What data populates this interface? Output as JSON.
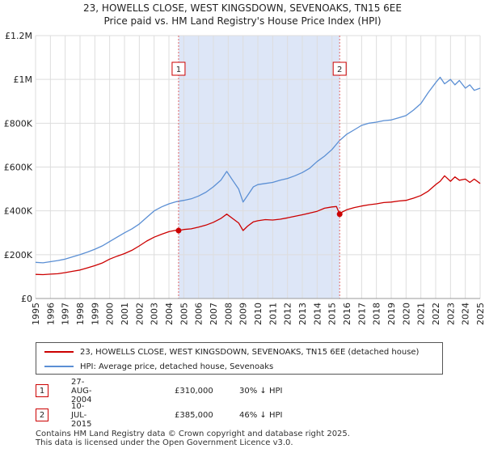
{
  "chart_data": {
    "type": "line",
    "title": "23, HOWELLS CLOSE, WEST KINGSDOWN, SEVENOAKS, TN15 6EE",
    "subtitle": "Price paid vs. HM Land Registry's House Price Index (HPI)",
    "xlabel": "",
    "ylabel": "",
    "xlim": [
      1995,
      2025
    ],
    "ylim": [
      0,
      1200000
    ],
    "grid": true,
    "x_ticks": [
      1995,
      1996,
      1997,
      1998,
      1999,
      2000,
      2001,
      2002,
      2003,
      2004,
      2005,
      2006,
      2007,
      2008,
      2009,
      2010,
      2011,
      2012,
      2013,
      2014,
      2015,
      2016,
      2017,
      2018,
      2019,
      2020,
      2021,
      2022,
      2023,
      2024,
      2025
    ],
    "y_ticks": [
      {
        "value": 0,
        "label": "£0"
      },
      {
        "value": 200000,
        "label": "£200K"
      },
      {
        "value": 400000,
        "label": "£400K"
      },
      {
        "value": 600000,
        "label": "£600K"
      },
      {
        "value": 800000,
        "label": "£800K"
      },
      {
        "value": 1000000,
        "label": "£1M"
      },
      {
        "value": 1200000,
        "label": "£1.2M"
      }
    ],
    "shaded_period": {
      "start": 2004.65,
      "end": 2015.52,
      "color": "#dde6f7"
    },
    "series": [
      {
        "name": "23, HOWELLS CLOSE, WEST KINGSDOWN, SEVENOAKS, TN15 6EE (detached house)",
        "color": "#cc0000",
        "x": [
          1995,
          1995.5,
          1996,
          1996.5,
          1997,
          1997.5,
          1998,
          1998.5,
          1999,
          1999.5,
          2000,
          2000.5,
          2001,
          2001.5,
          2002,
          2002.5,
          2003,
          2003.5,
          2004,
          2004.5,
          2004.65,
          2005,
          2005.5,
          2006,
          2006.5,
          2007,
          2007.5,
          2007.9,
          2008.3,
          2008.7,
          2009,
          2009.3,
          2009.7,
          2010,
          2010.5,
          2011,
          2011.5,
          2012,
          2012.5,
          2013,
          2013.5,
          2014,
          2014.5,
          2015,
          2015.3,
          2015.52,
          2015.7,
          2016,
          2016.5,
          2017,
          2017.5,
          2018,
          2018.5,
          2019,
          2019.5,
          2020,
          2020.5,
          2021,
          2021.5,
          2022,
          2022.3,
          2022.6,
          2023,
          2023.3,
          2023.6,
          2024,
          2024.3,
          2024.6,
          2025
        ],
        "values": [
          110000,
          109000,
          111000,
          113000,
          118000,
          124000,
          130000,
          140000,
          150000,
          162000,
          180000,
          193000,
          205000,
          220000,
          240000,
          262000,
          280000,
          293000,
          305000,
          312000,
          310000,
          315000,
          318000,
          326000,
          335000,
          348000,
          365000,
          385000,
          365000,
          345000,
          310000,
          330000,
          350000,
          355000,
          360000,
          358000,
          362000,
          368000,
          375000,
          382000,
          390000,
          398000,
          412000,
          418000,
          420000,
          385000,
          395000,
          405000,
          415000,
          422000,
          428000,
          432000,
          438000,
          440000,
          445000,
          448000,
          458000,
          470000,
          490000,
          520000,
          535000,
          560000,
          535000,
          555000,
          540000,
          545000,
          530000,
          545000,
          525000
        ]
      },
      {
        "name": "HPI: Average price, detached house, Sevenoaks",
        "color": "#5b8fd4",
        "x": [
          1995,
          1995.5,
          1996,
          1996.5,
          1997,
          1997.5,
          1998,
          1998.5,
          1999,
          1999.5,
          2000,
          2000.5,
          2001,
          2001.5,
          2002,
          2002.5,
          2003,
          2003.5,
          2004,
          2004.5,
          2005,
          2005.5,
          2006,
          2006.5,
          2007,
          2007.5,
          2007.9,
          2008.3,
          2008.7,
          2009,
          2009.3,
          2009.7,
          2010,
          2010.5,
          2011,
          2011.5,
          2012,
          2012.5,
          2013,
          2013.5,
          2014,
          2014.5,
          2015,
          2015.5,
          2016,
          2016.5,
          2017,
          2017.5,
          2018,
          2018.5,
          2019,
          2019.5,
          2020,
          2020.5,
          2021,
          2021.5,
          2022,
          2022.3,
          2022.6,
          2023,
          2023.3,
          2023.6,
          2024,
          2024.3,
          2024.6,
          2025
        ],
        "values": [
          165000,
          163000,
          168000,
          173000,
          180000,
          190000,
          200000,
          212000,
          225000,
          240000,
          260000,
          280000,
          300000,
          318000,
          340000,
          370000,
          400000,
          418000,
          432000,
          442000,
          448000,
          455000,
          468000,
          485000,
          510000,
          540000,
          580000,
          540000,
          500000,
          440000,
          470000,
          510000,
          520000,
          525000,
          530000,
          540000,
          548000,
          560000,
          575000,
          595000,
          625000,
          650000,
          680000,
          720000,
          750000,
          770000,
          790000,
          800000,
          805000,
          812000,
          815000,
          825000,
          835000,
          860000,
          890000,
          940000,
          985000,
          1010000,
          980000,
          1000000,
          975000,
          995000,
          960000,
          975000,
          950000,
          960000
        ]
      }
    ],
    "annotations": [
      {
        "label": "1",
        "x": 2004.65,
        "value": 310000
      },
      {
        "label": "2",
        "x": 2015.52,
        "value": 385000
      }
    ]
  },
  "legend": {
    "items": [
      {
        "label": "23, HOWELLS CLOSE, WEST KINGSDOWN, SEVENOAKS, TN15 6EE (detached house)",
        "color": "#cc0000"
      },
      {
        "label": "HPI: Average price, detached house, Sevenoaks",
        "color": "#5b8fd4"
      }
    ]
  },
  "transactions": [
    {
      "num": "1",
      "date": "27-AUG-2004",
      "price": "£310,000",
      "hpi": "30% ↓ HPI"
    },
    {
      "num": "2",
      "date": "10-JUL-2015",
      "price": "£385,000",
      "hpi": "46% ↓ HPI"
    }
  ],
  "footer": {
    "line1": "Contains HM Land Registry data © Crown copyright and database right 2025.",
    "line2": "This data is licensed under the Open Government Licence v3.0."
  }
}
